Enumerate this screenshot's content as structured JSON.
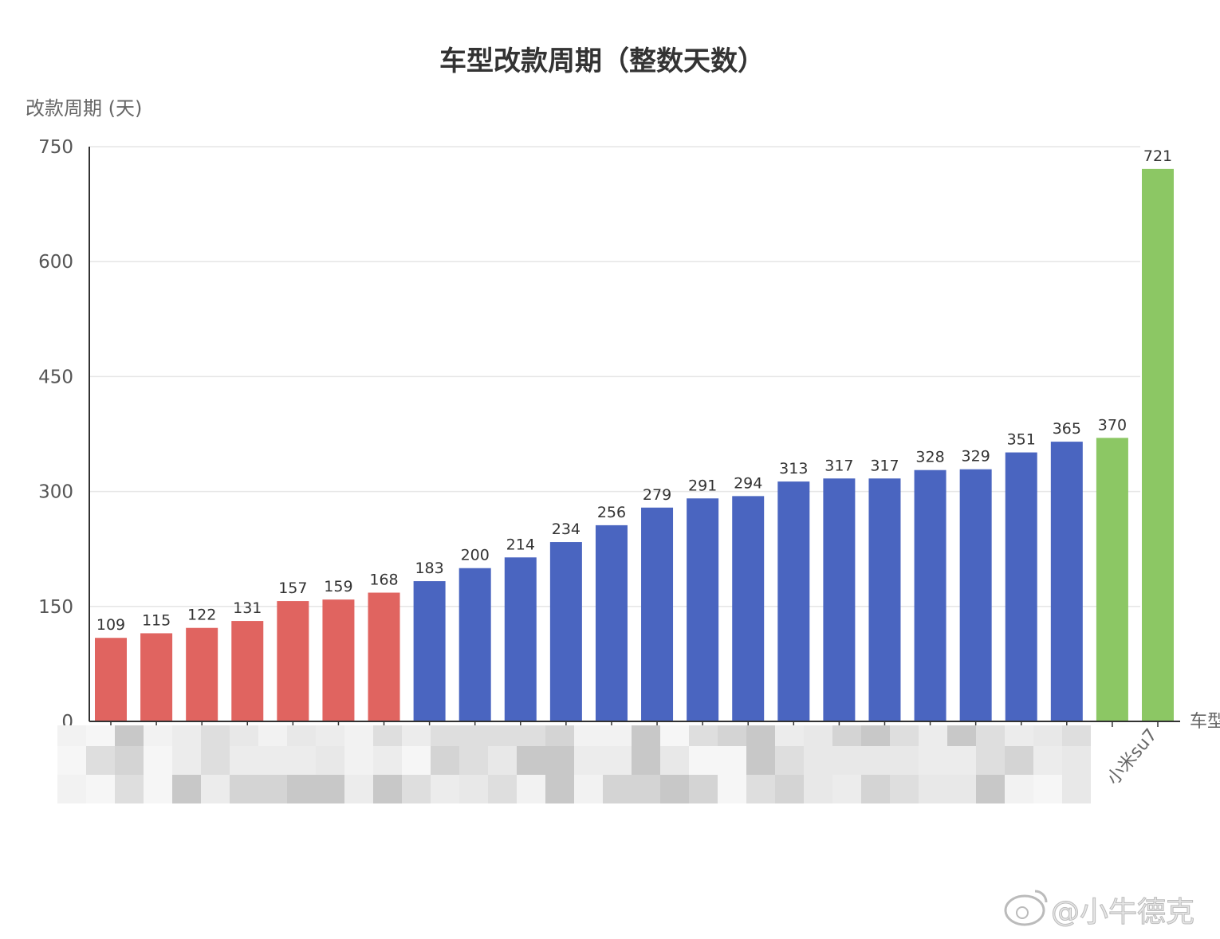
{
  "chart_data": {
    "type": "bar",
    "title": "车型改款周期（整数天数）",
    "ylabel": "改款周期 (天)",
    "xlabel": "车型",
    "ylim": [
      0,
      750
    ],
    "yticks": [
      0,
      150,
      300,
      450,
      600,
      750
    ],
    "grid": true,
    "categories": [
      "",
      "",
      "",
      "",
      "",
      "",
      "",
      "",
      "",
      "",
      "",
      "",
      "",
      "",
      "",
      "",
      "",
      "",
      "",
      "",
      "",
      "",
      "",
      "小米su7"
    ],
    "values": [
      109,
      115,
      122,
      131,
      157,
      159,
      168,
      183,
      200,
      214,
      234,
      256,
      279,
      291,
      294,
      313,
      317,
      317,
      328,
      329,
      351,
      365,
      370,
      721
    ],
    "bar_colors": [
      "#e06460",
      "#e06460",
      "#e06460",
      "#e06460",
      "#e06460",
      "#e06460",
      "#e06460",
      "#4a65c0",
      "#4a65c0",
      "#4a65c0",
      "#4a65c0",
      "#4a65c0",
      "#4a65c0",
      "#4a65c0",
      "#4a65c0",
      "#4a65c0",
      "#4a65c0",
      "#4a65c0",
      "#4a65c0",
      "#4a65c0",
      "#4a65c0",
      "#4a65c0",
      "#8cc764",
      "#8cc764"
    ],
    "note_blurred_labels": true
  },
  "watermark": "@小牛德克"
}
